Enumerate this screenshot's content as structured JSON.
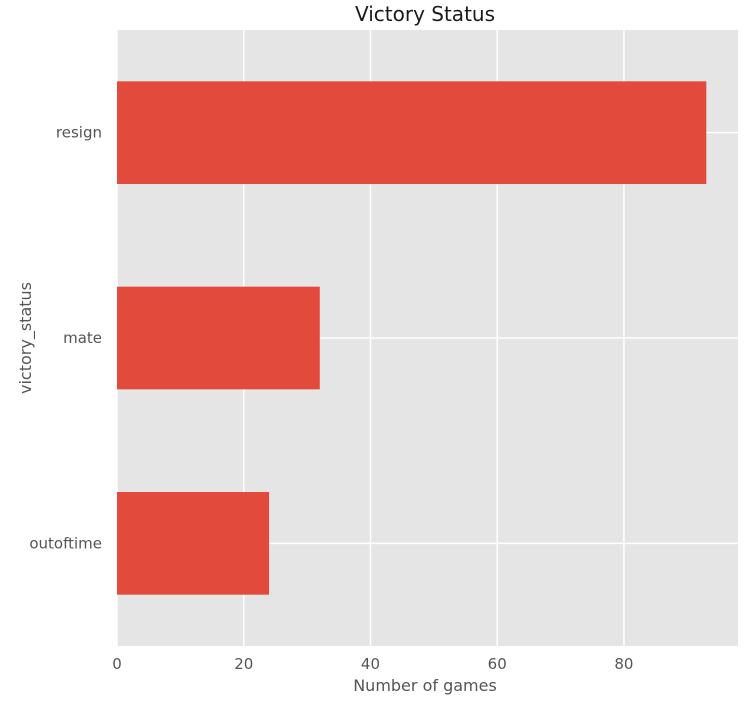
{
  "chart_data": {
    "type": "bar",
    "orientation": "horizontal",
    "title": "Victory Status",
    "xlabel": "Number of games",
    "ylabel": "victory_status",
    "categories": [
      "outoftime",
      "mate",
      "resign"
    ],
    "values": [
      24,
      32,
      93
    ],
    "xlim": [
      0,
      98
    ],
    "xticks": [
      0,
      20,
      40,
      60,
      80
    ],
    "grid": true,
    "legend": "none",
    "colors": {
      "bar": "#E24A3B",
      "plot_background": "#E5E5E5",
      "grid": "#FFFFFF"
    }
  }
}
